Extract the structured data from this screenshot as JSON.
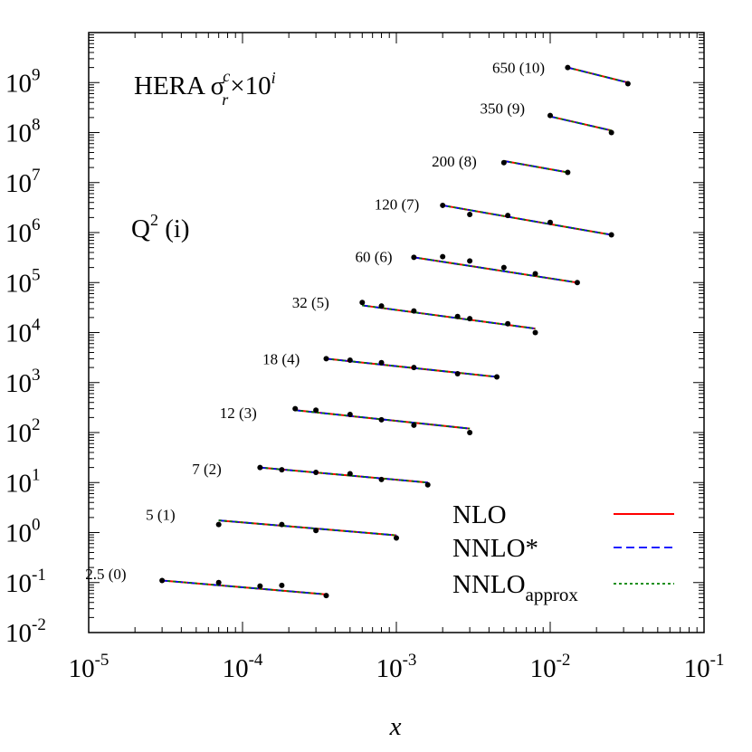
{
  "chart_data": {
    "type": "line",
    "title": "HERA σ",
    "title_sub": "r",
    "title_sup": "c",
    "title_mult": "×10",
    "title_exp": "i",
    "annotation_q2": "Q",
    "annotation_q2_sup": "2",
    "annotation_q2_rest": " (i)",
    "xlabel": "x",
    "ylabel": "",
    "x_scale": "log",
    "y_scale": "log",
    "xlim": [
      1e-05,
      0.1
    ],
    "ylim": [
      0.01,
      10000000000
    ],
    "x_ticks": [
      {
        "base": "10",
        "exp": "-5",
        "value": 1e-05
      },
      {
        "base": "10",
        "exp": "-4",
        "value": 0.0001
      },
      {
        "base": "10",
        "exp": "-3",
        "value": 0.001
      },
      {
        "base": "10",
        "exp": "-2",
        "value": 0.01
      },
      {
        "base": "10",
        "exp": "-1",
        "value": 0.1
      }
    ],
    "y_ticks": [
      {
        "base": "10",
        "exp": "-2",
        "value": 0.01
      },
      {
        "base": "10",
        "exp": "-1",
        "value": 0.1
      },
      {
        "base": "10",
        "exp": "0",
        "value": 1
      },
      {
        "base": "10",
        "exp": "1",
        "value": 10
      },
      {
        "base": "10",
        "exp": "2",
        "value": 100
      },
      {
        "base": "10",
        "exp": "3",
        "value": 1000
      },
      {
        "base": "10",
        "exp": "4",
        "value": 10000
      },
      {
        "base": "10",
        "exp": "5",
        "value": 100000
      },
      {
        "base": "10",
        "exp": "6",
        "value": 1000000
      },
      {
        "base": "10",
        "exp": "7",
        "value": 10000000
      },
      {
        "base": "10",
        "exp": "8",
        "value": 100000000
      },
      {
        "base": "10",
        "exp": "9",
        "value": 1000000000
      }
    ],
    "legend": {
      "placement": "bottom-right",
      "entries": [
        {
          "name": "NLO",
          "sub": "",
          "color": "#ff0000",
          "dash": "solid"
        },
        {
          "name": "NNLO*",
          "sub": "",
          "color": "#0000ff",
          "dash": "dashed"
        },
        {
          "name": "NNLO",
          "sub": "approx",
          "color": "#008000",
          "dash": "dotted"
        }
      ]
    },
    "groups": [
      {
        "label": "2.5 (0)",
        "label_at": [
          9.5e-06,
          0.15
        ],
        "curve": [
          [
            3e-05,
            0.11
          ],
          [
            0.00035,
            0.058
          ]
        ],
        "points": [
          [
            3e-05,
            0.11
          ],
          [
            7e-05,
            0.1
          ],
          [
            0.00013,
            0.085
          ],
          [
            0.00018,
            0.088
          ],
          [
            0.00035,
            0.055
          ]
        ]
      },
      {
        "label": "5 (1)",
        "label_at": [
          2.35e-05,
          2.3
        ],
        "curve": [
          [
            7e-05,
            1.75
          ],
          [
            0.001,
            0.88
          ]
        ],
        "points": [
          [
            7e-05,
            1.45
          ],
          [
            0.00018,
            1.45
          ],
          [
            0.0003,
            1.1
          ],
          [
            0.001,
            0.78
          ]
        ]
      },
      {
        "label": "7 (2)",
        "label_at": [
          4.7e-05,
          19
        ],
        "curve": [
          [
            0.00013,
            20
          ],
          [
            0.0016,
            10
          ]
        ],
        "points": [
          [
            0.00013,
            20
          ],
          [
            0.00018,
            18
          ],
          [
            0.0003,
            16
          ],
          [
            0.0005,
            15
          ],
          [
            0.0008,
            11.5
          ],
          [
            0.0016,
            9
          ]
        ]
      },
      {
        "label": "12 (3)",
        "label_at": [
          7.1e-05,
          250
        ],
        "curve": [
          [
            0.00022,
            280
          ],
          [
            0.003,
            120
          ]
        ],
        "points": [
          [
            0.00022,
            300
          ],
          [
            0.0003,
            280
          ],
          [
            0.0005,
            230
          ],
          [
            0.0008,
            180
          ],
          [
            0.0013,
            140
          ],
          [
            0.003,
            100
          ]
        ]
      },
      {
        "label": "18 (4)",
        "label_at": [
          0.000135,
          3000
        ],
        "curve": [
          [
            0.00035,
            3000
          ],
          [
            0.0045,
            1300
          ]
        ],
        "points": [
          [
            0.00035,
            3000
          ],
          [
            0.0005,
            2800
          ],
          [
            0.0008,
            2500
          ],
          [
            0.0013,
            2000
          ],
          [
            0.0025,
            1500
          ],
          [
            0.0045,
            1300
          ]
        ]
      },
      {
        "label": "32 (5)",
        "label_at": [
          0.00021,
          40000
        ],
        "curve": [
          [
            0.0006,
            35000
          ],
          [
            0.008,
            12000
          ]
        ],
        "points": [
          [
            0.0006,
            40000
          ],
          [
            0.0008,
            34000
          ],
          [
            0.0013,
            27000
          ],
          [
            0.0025,
            21000
          ],
          [
            0.003,
            19000
          ],
          [
            0.0053,
            15000
          ],
          [
            0.008,
            10000
          ]
        ]
      },
      {
        "label": "60 (6)",
        "label_at": [
          0.00054,
          330000
        ],
        "curve": [
          [
            0.0013,
            320000
          ],
          [
            0.015,
            100000
          ]
        ],
        "points": [
          [
            0.0013,
            320000
          ],
          [
            0.002,
            330000
          ],
          [
            0.003,
            270000
          ],
          [
            0.005,
            200000
          ],
          [
            0.008,
            150000
          ],
          [
            0.015,
            100000
          ]
        ]
      },
      {
        "label": "120 (7)",
        "label_at": [
          0.00072,
          3700000
        ],
        "curve": [
          [
            0.002,
            3500000
          ],
          [
            0.025,
            900000
          ]
        ],
        "points": [
          [
            0.002,
            3500000
          ],
          [
            0.003,
            2300000
          ],
          [
            0.0053,
            2200000
          ],
          [
            0.01,
            1600000
          ],
          [
            0.025,
            900000
          ]
        ]
      },
      {
        "label": "200 (8)",
        "label_at": [
          0.0017,
          27000000
        ],
        "curve": [
          [
            0.005,
            27000000
          ],
          [
            0.013,
            16000000
          ]
        ],
        "points": [
          [
            0.005,
            25000000
          ],
          [
            0.013,
            16000000
          ]
        ]
      },
      {
        "label": "350 (9)",
        "label_at": [
          0.0035,
          310000000
        ],
        "curve": [
          [
            0.01,
            210000000
          ],
          [
            0.025,
            110000000
          ]
        ],
        "points": [
          [
            0.01,
            220000000
          ],
          [
            0.025,
            100000000
          ]
        ]
      },
      {
        "label": "650 (10)",
        "label_at": [
          0.0042,
          2000000000
        ],
        "curve": [
          [
            0.013,
            2000000000
          ],
          [
            0.032,
            1000000000
          ]
        ],
        "points": [
          [
            0.013,
            2000000000
          ],
          [
            0.032,
            950000000
          ]
        ]
      }
    ]
  }
}
